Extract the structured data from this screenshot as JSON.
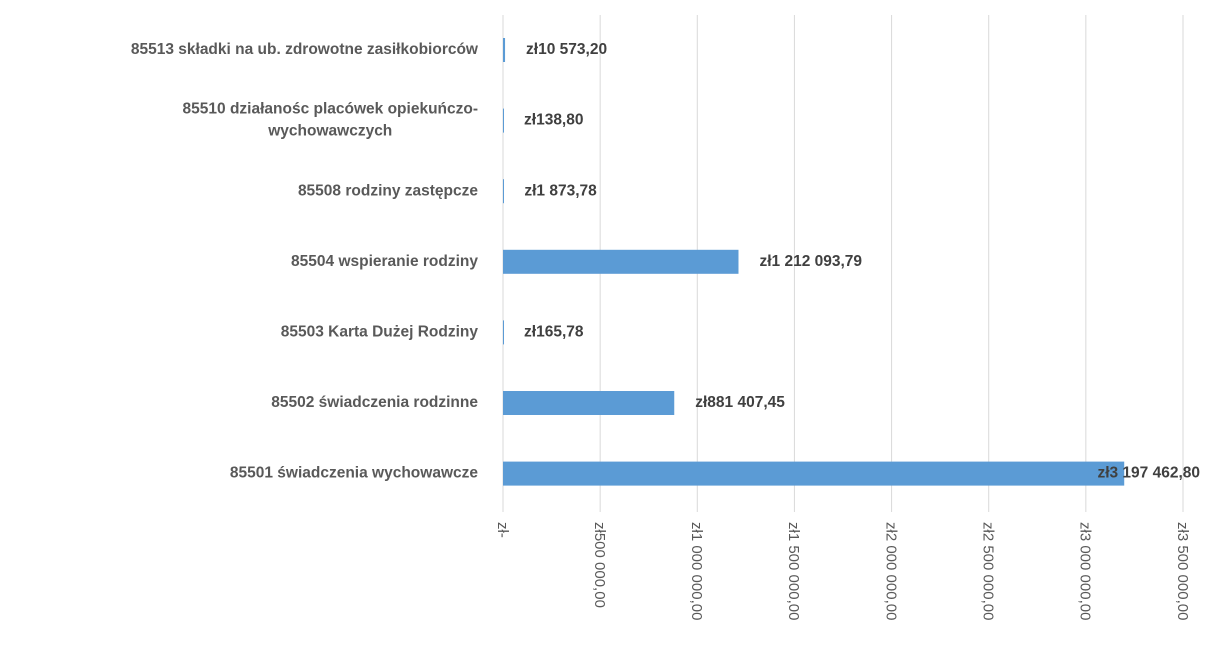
{
  "chart_data": {
    "type": "bar",
    "orientation": "horizontal",
    "categories": [
      "85513 składki na ub. zdrowotne zasiłkobiorców",
      "85510 działanośc placówek opiekuńczo-\nwychowawczych",
      "85508 rodziny zastępcze",
      "85504 wspieranie rodziny",
      "85503 Karta Dużej Rodziny",
      "85502 świadczenia rodzinne",
      "85501 świadczenia wychowawcze"
    ],
    "values": [
      10573.2,
      138.8,
      1873.78,
      1212093.79,
      165.78,
      881407.45,
      3197462.8
    ],
    "value_labels": [
      "zł10 573,20",
      "zł138,80",
      "zł1 873,78",
      "zł1 212 093,79",
      "zł165,78",
      "zł881 407,45",
      "zł3 197 462,80"
    ],
    "color": "#5b9bd5",
    "xlim": [
      0,
      3500000
    ],
    "xticks": [
      {
        "value": 0,
        "label": "zł-"
      },
      {
        "value": 500000,
        "label": "zł500 000,00"
      },
      {
        "value": 1000000,
        "label": "zł1 000 000,00"
      },
      {
        "value": 1500000,
        "label": "zł1 500 000,00"
      },
      {
        "value": 2000000,
        "label": "zł2 000 000,00"
      },
      {
        "value": 2500000,
        "label": "zł2 500 000,00"
      },
      {
        "value": 3000000,
        "label": "zł3 000 000,00"
      },
      {
        "value": 3500000,
        "label": "zł3 500 000,00"
      }
    ],
    "grid": true
  }
}
